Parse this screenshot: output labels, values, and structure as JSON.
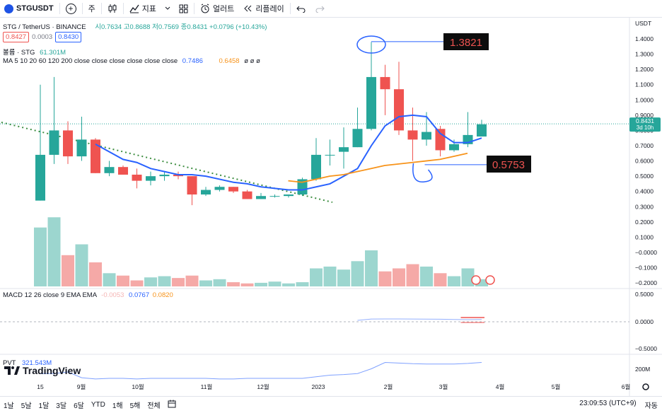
{
  "toolbar": {
    "symbol": "STGUSDT",
    "interval": "주",
    "indicators_label": "지표",
    "alert_label": "얼러트",
    "replay_label": "리플레이"
  },
  "legend": {
    "pair": "STG / TetherUS · BINANCE",
    "o_label": "시",
    "o_val": "0.7634",
    "h_label": "고",
    "h_val": "0.8688",
    "l_label": "저",
    "l_val": "0.7569",
    "c_label": "종",
    "c_val": "0.8431",
    "change": "+0.0796 (+10.43%)",
    "bid": "0.8427",
    "spread": "0.0003",
    "ask": "0.8430",
    "volume_label": "볼륨 · STG",
    "volume_val": "61.301M",
    "ma_label": "MA 5 10 20 60 120 200 close close close close close close",
    "ma_val1": "0.7486",
    "ma_val2": "0.6458",
    "ma_rest": "ø ø ø"
  },
  "macd": {
    "label": "MACD 12 26 close 9 EMA EMA",
    "v1": "-0.0053",
    "v2": "0.0767",
    "v3": "0.0820"
  },
  "pvt": {
    "label": "PVT",
    "value": "321.543M"
  },
  "price_axis": {
    "currency": "USDT",
    "ticks": [
      "1.4000",
      "1.3000",
      "1.2000",
      "1.1000",
      "1.0000",
      "0.9000",
      "0.8000",
      "0.7000",
      "0.6000",
      "0.5000",
      "0.4000",
      "0.3000",
      "0.2000",
      "0.1000",
      "−0.0000",
      "−0.1000",
      "−0.2000"
    ],
    "last_price": "0.8431",
    "countdown": "3d 10h"
  },
  "macd_axis": {
    "ticks": [
      "0.5000",
      "0.0000",
      "−0.5000"
    ]
  },
  "pvt_axis": {
    "ticks": [
      "200M"
    ]
  },
  "time_axis": {
    "labels": [
      "15",
      "9월",
      "10월",
      "11월",
      "12월",
      "2023",
      "2월",
      "3월",
      "4월",
      "5월",
      "6월"
    ]
  },
  "annotations": {
    "high": "1.3821",
    "low": "0.5753"
  },
  "brand": "TradingView",
  "bottom": {
    "ranges": [
      "1날",
      "5날",
      "1달",
      "3달",
      "6달",
      "YTD",
      "1해",
      "5해",
      "전체"
    ],
    "clock": "23:09:53 (UTC+9)",
    "auto_label": "자동"
  },
  "colors": {
    "up": "#26a69a",
    "down": "#ef5350",
    "ma_short": "#2962ff",
    "ma_long": "#f7931a",
    "accent": "#2962ff"
  },
  "chart_data": {
    "type": "candlestick",
    "candles": [
      {
        "o": 0.34,
        "h": 1.1,
        "l": 0.34,
        "c": 0.64
      },
      {
        "o": 0.64,
        "h": 1.15,
        "l": 0.58,
        "c": 0.8
      },
      {
        "o": 0.8,
        "h": 0.86,
        "l": 0.58,
        "c": 0.63
      },
      {
        "o": 0.63,
        "h": 0.89,
        "l": 0.6,
        "c": 0.74
      },
      {
        "o": 0.74,
        "h": 0.75,
        "l": 0.52,
        "c": 0.52
      },
      {
        "o": 0.52,
        "h": 0.6,
        "l": 0.5,
        "c": 0.56
      },
      {
        "o": 0.56,
        "h": 0.57,
        "l": 0.51,
        "c": 0.51
      },
      {
        "o": 0.51,
        "h": 0.55,
        "l": 0.42,
        "c": 0.47
      },
      {
        "o": 0.47,
        "h": 0.53,
        "l": 0.44,
        "c": 0.5
      },
      {
        "o": 0.5,
        "h": 0.53,
        "l": 0.47,
        "c": 0.51
      },
      {
        "o": 0.51,
        "h": 0.53,
        "l": 0.48,
        "c": 0.5
      },
      {
        "o": 0.5,
        "h": 0.5,
        "l": 0.31,
        "c": 0.38
      },
      {
        "o": 0.38,
        "h": 0.43,
        "l": 0.37,
        "c": 0.41
      },
      {
        "o": 0.41,
        "h": 0.44,
        "l": 0.4,
        "c": 0.43
      },
      {
        "o": 0.43,
        "h": 0.43,
        "l": 0.39,
        "c": 0.4
      },
      {
        "o": 0.4,
        "h": 0.41,
        "l": 0.35,
        "c": 0.35
      },
      {
        "o": 0.35,
        "h": 0.39,
        "l": 0.35,
        "c": 0.37
      },
      {
        "o": 0.37,
        "h": 0.38,
        "l": 0.36,
        "c": 0.37
      },
      {
        "o": 0.37,
        "h": 0.38,
        "l": 0.36,
        "c": 0.38
      },
      {
        "o": 0.38,
        "h": 0.49,
        "l": 0.37,
        "c": 0.48
      },
      {
        "o": 0.48,
        "h": 0.75,
        "l": 0.47,
        "c": 0.64
      },
      {
        "o": 0.64,
        "h": 0.74,
        "l": 0.57,
        "c": 0.64
      },
      {
        "o": 0.66,
        "h": 0.82,
        "l": 0.55,
        "c": 0.69
      },
      {
        "o": 0.69,
        "h": 0.95,
        "l": 0.69,
        "c": 0.81
      },
      {
        "o": 0.81,
        "h": 1.38,
        "l": 0.8,
        "c": 1.15
      },
      {
        "o": 1.15,
        "h": 1.23,
        "l": 0.9,
        "c": 1.07
      },
      {
        "o": 1.07,
        "h": 1.25,
        "l": 0.77,
        "c": 0.8
      },
      {
        "o": 0.8,
        "h": 0.95,
        "l": 0.6,
        "c": 0.74
      },
      {
        "o": 0.74,
        "h": 0.92,
        "l": 0.7,
        "c": 0.79
      },
      {
        "o": 0.81,
        "h": 0.83,
        "l": 0.63,
        "c": 0.67
      },
      {
        "o": 0.67,
        "h": 0.74,
        "l": 0.66,
        "c": 0.71
      },
      {
        "o": 0.71,
        "h": 0.92,
        "l": 0.69,
        "c": 0.77
      },
      {
        "o": 0.76,
        "h": 0.87,
        "l": 0.76,
        "c": 0.84
      }
    ],
    "volume_rel": [
      0.98,
      1.15,
      0.52,
      0.7,
      0.4,
      0.22,
      0.18,
      0.1,
      0.15,
      0.17,
      0.14,
      0.18,
      0.1,
      0.12,
      0.07,
      0.05,
      0.06,
      0.08,
      0.05,
      0.07,
      0.3,
      0.33,
      0.28,
      0.42,
      0.6,
      0.25,
      0.3,
      0.37,
      0.33,
      0.22,
      0.17,
      0.3,
      0.12
    ],
    "ma_short": [
      null,
      null,
      null,
      null,
      0.71,
      0.66,
      0.61,
      0.59,
      0.55,
      0.53,
      0.51,
      0.51,
      0.5,
      0.48,
      0.46,
      0.45,
      0.43,
      0.42,
      0.41,
      0.41,
      0.43,
      0.45,
      0.5,
      0.55,
      0.7,
      0.83,
      0.89,
      0.9,
      0.89,
      0.78,
      0.72,
      0.72,
      0.75
    ],
    "ma_long_start": 19,
    "ma_long": [
      0.47,
      0.46,
      0.48,
      0.5,
      0.51,
      0.53,
      0.55,
      0.57,
      0.58,
      0.59,
      0.6,
      0.61,
      0.63,
      0.65
    ],
    "macd_line": [
      0.025,
      0.048,
      0.05,
      0.05,
      0.049,
      0.047,
      0.045,
      0.04,
      0.038,
      0.04
    ],
    "macd_start": 23,
    "pvt_rel": [
      0.55,
      0.55,
      0.6,
      0.42,
      0.38,
      0.4,
      0.4,
      0.38,
      0.4,
      0.4,
      0.4,
      0.4,
      0.4,
      0.38,
      0.38,
      0.4,
      0.4,
      0.4,
      0.4,
      0.4,
      0.45,
      0.5,
      0.52,
      0.55,
      0.7,
      0.9,
      0.88,
      0.86,
      0.85,
      0.85,
      0.85,
      0.87,
      0.9
    ],
    "ylim": [
      0.15,
      1.45
    ]
  }
}
